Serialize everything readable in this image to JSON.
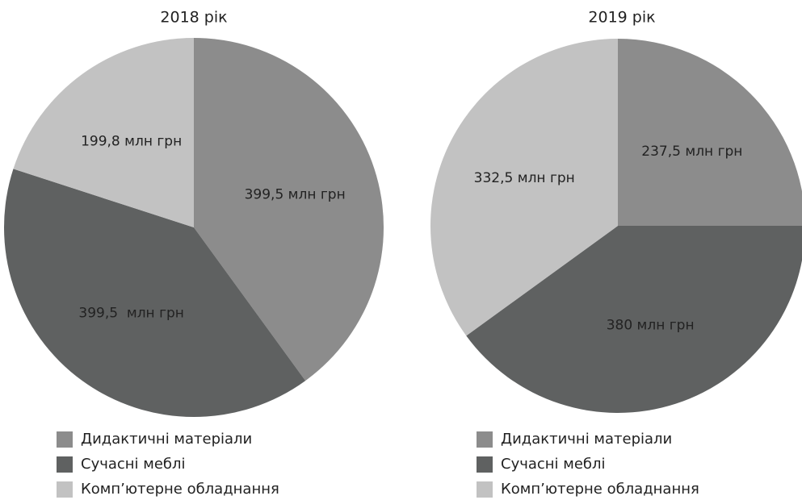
{
  "chart_data": [
    {
      "type": "pie",
      "title": "2018 рік",
      "categories": [
        "Дидактичні матеріали",
        "Сучасні меблі",
        "Комп’ютерне обладнання"
      ],
      "values": [
        399.5,
        399.5,
        199.8
      ],
      "value_labels": [
        "399,5 млн грн",
        "399,5  млн грн",
        "199,8 млн грн"
      ],
      "colors": [
        "#8c8c8c",
        "#5f6161",
        "#c2c2c2"
      ]
    },
    {
      "type": "pie",
      "title": "2019 рік",
      "categories": [
        "Дидактичні матеріали",
        "Сучасні меблі",
        "Комп’ютерне обладнання"
      ],
      "values": [
        237.5,
        380,
        332.5
      ],
      "value_labels": [
        "237,5 млн грн",
        "380 млн грн",
        "332,5 млн грн"
      ],
      "colors": [
        "#8c8c8c",
        "#5f6161",
        "#c2c2c2"
      ]
    }
  ]
}
